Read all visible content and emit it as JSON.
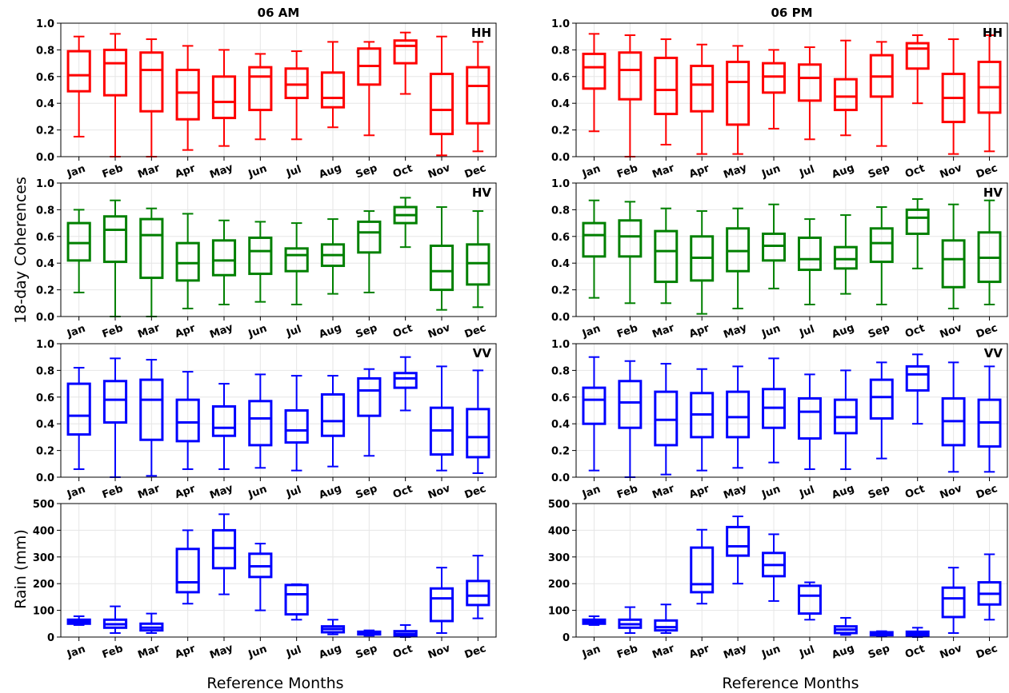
{
  "figure": {
    "ylabel_coherence": "18-day Coherences",
    "ylabel_rain": "Rain (mm)",
    "xlabel": "Reference Months"
  },
  "chart_data": [
    {
      "type": "box",
      "column": 0,
      "row": 0,
      "title": "06 AM",
      "label": "HH",
      "color": "#ff0000",
      "ylim": [
        0,
        1
      ],
      "yticks": [
        0.0,
        0.2,
        0.4,
        0.6,
        0.8,
        1.0
      ],
      "tick_decimals": 1,
      "categories": [
        "Jan",
        "Feb",
        "Mar",
        "Apr",
        "May",
        "Jun",
        "Jul",
        "Aug",
        "Sep",
        "Oct",
        "Nov",
        "Dec"
      ],
      "boxes": [
        {
          "min": 0.15,
          "q1": 0.49,
          "median": 0.61,
          "q3": 0.79,
          "max": 0.9
        },
        {
          "min": 0.0,
          "q1": 0.46,
          "median": 0.7,
          "q3": 0.8,
          "max": 0.92
        },
        {
          "min": 0.0,
          "q1": 0.34,
          "median": 0.65,
          "q3": 0.78,
          "max": 0.88
        },
        {
          "min": 0.05,
          "q1": 0.28,
          "median": 0.48,
          "q3": 0.65,
          "max": 0.83
        },
        {
          "min": 0.08,
          "q1": 0.29,
          "median": 0.41,
          "q3": 0.6,
          "max": 0.8
        },
        {
          "min": 0.13,
          "q1": 0.35,
          "median": 0.6,
          "q3": 0.67,
          "max": 0.77
        },
        {
          "min": 0.13,
          "q1": 0.44,
          "median": 0.54,
          "q3": 0.66,
          "max": 0.79
        },
        {
          "min": 0.22,
          "q1": 0.37,
          "median": 0.44,
          "q3": 0.63,
          "max": 0.86
        },
        {
          "min": 0.16,
          "q1": 0.54,
          "median": 0.68,
          "q3": 0.81,
          "max": 0.86
        },
        {
          "min": 0.47,
          "q1": 0.7,
          "median": 0.83,
          "q3": 0.87,
          "max": 0.93
        },
        {
          "min": 0.01,
          "q1": 0.17,
          "median": 0.35,
          "q3": 0.62,
          "max": 0.9
        },
        {
          "min": 0.04,
          "q1": 0.25,
          "median": 0.53,
          "q3": 0.67,
          "max": 0.86
        }
      ]
    },
    {
      "type": "box",
      "column": 1,
      "row": 0,
      "title": "06 PM",
      "label": "HH",
      "color": "#ff0000",
      "ylim": [
        0,
        1
      ],
      "yticks": [
        0.0,
        0.2,
        0.4,
        0.6,
        0.8,
        1.0
      ],
      "tick_decimals": 1,
      "categories": [
        "Jan",
        "Feb",
        "Mar",
        "Apr",
        "May",
        "Jun",
        "Jul",
        "Aug",
        "Sep",
        "Oct",
        "Nov",
        "Dec"
      ],
      "boxes": [
        {
          "min": 0.19,
          "q1": 0.51,
          "median": 0.67,
          "q3": 0.77,
          "max": 0.92
        },
        {
          "min": 0.0,
          "q1": 0.43,
          "median": 0.65,
          "q3": 0.78,
          "max": 0.91
        },
        {
          "min": 0.09,
          "q1": 0.32,
          "median": 0.5,
          "q3": 0.74,
          "max": 0.88
        },
        {
          "min": 0.02,
          "q1": 0.34,
          "median": 0.54,
          "q3": 0.68,
          "max": 0.84
        },
        {
          "min": 0.02,
          "q1": 0.24,
          "median": 0.56,
          "q3": 0.71,
          "max": 0.83
        },
        {
          "min": 0.21,
          "q1": 0.48,
          "median": 0.6,
          "q3": 0.7,
          "max": 0.8
        },
        {
          "min": 0.13,
          "q1": 0.42,
          "median": 0.59,
          "q3": 0.69,
          "max": 0.82
        },
        {
          "min": 0.16,
          "q1": 0.35,
          "median": 0.45,
          "q3": 0.58,
          "max": 0.87
        },
        {
          "min": 0.08,
          "q1": 0.45,
          "median": 0.6,
          "q3": 0.76,
          "max": 0.86
        },
        {
          "min": 0.4,
          "q1": 0.66,
          "median": 0.81,
          "q3": 0.85,
          "max": 0.91
        },
        {
          "min": 0.02,
          "q1": 0.26,
          "median": 0.44,
          "q3": 0.62,
          "max": 0.88
        },
        {
          "min": 0.04,
          "q1": 0.33,
          "median": 0.52,
          "q3": 0.71,
          "max": 0.91
        }
      ]
    },
    {
      "type": "box",
      "column": 0,
      "row": 1,
      "label": "HV",
      "color": "#008000",
      "ylim": [
        0,
        1
      ],
      "yticks": [
        0.0,
        0.2,
        0.4,
        0.6,
        0.8,
        1.0
      ],
      "tick_decimals": 1,
      "categories": [
        "Jan",
        "Feb",
        "Mar",
        "Apr",
        "May",
        "Jun",
        "Jul",
        "Aug",
        "Sep",
        "Oct",
        "Nov",
        "Dec"
      ],
      "boxes": [
        {
          "min": 0.18,
          "q1": 0.42,
          "median": 0.55,
          "q3": 0.7,
          "max": 0.8
        },
        {
          "min": 0.0,
          "q1": 0.41,
          "median": 0.65,
          "q3": 0.75,
          "max": 0.87
        },
        {
          "min": 0.0,
          "q1": 0.29,
          "median": 0.61,
          "q3": 0.73,
          "max": 0.81
        },
        {
          "min": 0.06,
          "q1": 0.27,
          "median": 0.4,
          "q3": 0.55,
          "max": 0.77
        },
        {
          "min": 0.09,
          "q1": 0.31,
          "median": 0.42,
          "q3": 0.57,
          "max": 0.72
        },
        {
          "min": 0.11,
          "q1": 0.32,
          "median": 0.49,
          "q3": 0.59,
          "max": 0.71
        },
        {
          "min": 0.09,
          "q1": 0.34,
          "median": 0.46,
          "q3": 0.51,
          "max": 0.7
        },
        {
          "min": 0.17,
          "q1": 0.38,
          "median": 0.46,
          "q3": 0.54,
          "max": 0.73
        },
        {
          "min": 0.18,
          "q1": 0.48,
          "median": 0.63,
          "q3": 0.71,
          "max": 0.79
        },
        {
          "min": 0.52,
          "q1": 0.7,
          "median": 0.76,
          "q3": 0.82,
          "max": 0.89
        },
        {
          "min": 0.05,
          "q1": 0.2,
          "median": 0.34,
          "q3": 0.53,
          "max": 0.82
        },
        {
          "min": 0.07,
          "q1": 0.24,
          "median": 0.4,
          "q3": 0.54,
          "max": 0.79
        }
      ]
    },
    {
      "type": "box",
      "column": 1,
      "row": 1,
      "label": "HV",
      "color": "#008000",
      "ylim": [
        0,
        1
      ],
      "yticks": [
        0.0,
        0.2,
        0.4,
        0.6,
        0.8,
        1.0
      ],
      "tick_decimals": 1,
      "categories": [
        "Jan",
        "Feb",
        "Mar",
        "Apr",
        "May",
        "Jun",
        "Jul",
        "Aug",
        "Sep",
        "Oct",
        "Nov",
        "Dec"
      ],
      "boxes": [
        {
          "min": 0.14,
          "q1": 0.45,
          "median": 0.61,
          "q3": 0.7,
          "max": 0.87
        },
        {
          "min": 0.1,
          "q1": 0.45,
          "median": 0.6,
          "q3": 0.72,
          "max": 0.86
        },
        {
          "min": 0.1,
          "q1": 0.26,
          "median": 0.49,
          "q3": 0.64,
          "max": 0.81
        },
        {
          "min": 0.02,
          "q1": 0.27,
          "median": 0.44,
          "q3": 0.6,
          "max": 0.79
        },
        {
          "min": 0.06,
          "q1": 0.34,
          "median": 0.49,
          "q3": 0.66,
          "max": 0.81
        },
        {
          "min": 0.21,
          "q1": 0.42,
          "median": 0.53,
          "q3": 0.62,
          "max": 0.84
        },
        {
          "min": 0.09,
          "q1": 0.35,
          "median": 0.43,
          "q3": 0.59,
          "max": 0.73
        },
        {
          "min": 0.17,
          "q1": 0.36,
          "median": 0.43,
          "q3": 0.52,
          "max": 0.76
        },
        {
          "min": 0.09,
          "q1": 0.41,
          "median": 0.55,
          "q3": 0.66,
          "max": 0.82
        },
        {
          "min": 0.36,
          "q1": 0.62,
          "median": 0.74,
          "q3": 0.8,
          "max": 0.88
        },
        {
          "min": 0.06,
          "q1": 0.22,
          "median": 0.43,
          "q3": 0.57,
          "max": 0.84
        },
        {
          "min": 0.09,
          "q1": 0.26,
          "median": 0.44,
          "q3": 0.63,
          "max": 0.87
        }
      ]
    },
    {
      "type": "box",
      "column": 0,
      "row": 2,
      "label": "VV",
      "color": "#0000ff",
      "ylim": [
        0,
        1
      ],
      "yticks": [
        0.0,
        0.2,
        0.4,
        0.6,
        0.8,
        1.0
      ],
      "tick_decimals": 1,
      "categories": [
        "Jan",
        "Feb",
        "Mar",
        "Apr",
        "May",
        "Jun",
        "Jul",
        "Aug",
        "Sep",
        "Oct",
        "Nov",
        "Dec"
      ],
      "boxes": [
        {
          "min": 0.06,
          "q1": 0.32,
          "median": 0.46,
          "q3": 0.7,
          "max": 0.82
        },
        {
          "min": 0.0,
          "q1": 0.41,
          "median": 0.58,
          "q3": 0.72,
          "max": 0.89
        },
        {
          "min": 0.01,
          "q1": 0.28,
          "median": 0.58,
          "q3": 0.73,
          "max": 0.88
        },
        {
          "min": 0.06,
          "q1": 0.27,
          "median": 0.41,
          "q3": 0.58,
          "max": 0.79
        },
        {
          "min": 0.06,
          "q1": 0.31,
          "median": 0.37,
          "q3": 0.53,
          "max": 0.7
        },
        {
          "min": 0.07,
          "q1": 0.24,
          "median": 0.44,
          "q3": 0.57,
          "max": 0.77
        },
        {
          "min": 0.05,
          "q1": 0.26,
          "median": 0.35,
          "q3": 0.5,
          "max": 0.76
        },
        {
          "min": 0.08,
          "q1": 0.31,
          "median": 0.42,
          "q3": 0.62,
          "max": 0.76
        },
        {
          "min": 0.16,
          "q1": 0.46,
          "median": 0.65,
          "q3": 0.74,
          "max": 0.81
        },
        {
          "min": 0.5,
          "q1": 0.67,
          "median": 0.74,
          "q3": 0.78,
          "max": 0.9
        },
        {
          "min": 0.05,
          "q1": 0.17,
          "median": 0.35,
          "q3": 0.52,
          "max": 0.83
        },
        {
          "min": 0.03,
          "q1": 0.15,
          "median": 0.3,
          "q3": 0.51,
          "max": 0.8
        }
      ]
    },
    {
      "type": "box",
      "column": 1,
      "row": 2,
      "label": "VV",
      "color": "#0000ff",
      "ylim": [
        0,
        1
      ],
      "yticks": [
        0.0,
        0.2,
        0.4,
        0.6,
        0.8,
        1.0
      ],
      "tick_decimals": 1,
      "categories": [
        "Jan",
        "Feb",
        "Mar",
        "Apr",
        "May",
        "Jun",
        "Jul",
        "Aug",
        "Sep",
        "Oct",
        "Nov",
        "Dec"
      ],
      "boxes": [
        {
          "min": 0.05,
          "q1": 0.4,
          "median": 0.58,
          "q3": 0.67,
          "max": 0.9
        },
        {
          "min": 0.0,
          "q1": 0.37,
          "median": 0.56,
          "q3": 0.72,
          "max": 0.87
        },
        {
          "min": 0.02,
          "q1": 0.24,
          "median": 0.43,
          "q3": 0.64,
          "max": 0.85
        },
        {
          "min": 0.05,
          "q1": 0.3,
          "median": 0.47,
          "q3": 0.63,
          "max": 0.81
        },
        {
          "min": 0.07,
          "q1": 0.3,
          "median": 0.45,
          "q3": 0.64,
          "max": 0.83
        },
        {
          "min": 0.11,
          "q1": 0.37,
          "median": 0.52,
          "q3": 0.66,
          "max": 0.89
        },
        {
          "min": 0.06,
          "q1": 0.29,
          "median": 0.49,
          "q3": 0.59,
          "max": 0.77
        },
        {
          "min": 0.06,
          "q1": 0.33,
          "median": 0.45,
          "q3": 0.58,
          "max": 0.8
        },
        {
          "min": 0.14,
          "q1": 0.44,
          "median": 0.6,
          "q3": 0.73,
          "max": 0.86
        },
        {
          "min": 0.4,
          "q1": 0.65,
          "median": 0.77,
          "q3": 0.83,
          "max": 0.92
        },
        {
          "min": 0.04,
          "q1": 0.24,
          "median": 0.42,
          "q3": 0.59,
          "max": 0.86
        },
        {
          "min": 0.04,
          "q1": 0.23,
          "median": 0.41,
          "q3": 0.58,
          "max": 0.83
        }
      ]
    },
    {
      "type": "box",
      "column": 0,
      "row": 3,
      "color": "#0000ff",
      "ylim": [
        0,
        500
      ],
      "yticks": [
        0,
        100,
        200,
        300,
        400,
        500
      ],
      "tick_decimals": 0,
      "categories": [
        "Jan",
        "Feb",
        "Mar",
        "Apr",
        "May",
        "Jun",
        "Jul",
        "Aug",
        "Sep",
        "Oct",
        "Nov",
        "Dec"
      ],
      "boxes": [
        {
          "min": 45,
          "q1": 50,
          "median": 58,
          "q3": 65,
          "max": 78
        },
        {
          "min": 15,
          "q1": 35,
          "median": 48,
          "q3": 65,
          "max": 115
        },
        {
          "min": 15,
          "q1": 25,
          "median": 35,
          "q3": 50,
          "max": 88
        },
        {
          "min": 125,
          "q1": 168,
          "median": 205,
          "q3": 330,
          "max": 400
        },
        {
          "min": 160,
          "q1": 258,
          "median": 333,
          "q3": 400,
          "max": 460
        },
        {
          "min": 100,
          "q1": 225,
          "median": 265,
          "q3": 312,
          "max": 350
        },
        {
          "min": 65,
          "q1": 85,
          "median": 160,
          "q3": 195,
          "max": 198
        },
        {
          "min": 10,
          "q1": 18,
          "median": 30,
          "q3": 40,
          "max": 65
        },
        {
          "min": 5,
          "q1": 10,
          "median": 15,
          "q3": 20,
          "max": 25
        },
        {
          "min": 0,
          "q1": 5,
          "median": 12,
          "q3": 22,
          "max": 45
        },
        {
          "min": 15,
          "q1": 60,
          "median": 145,
          "q3": 182,
          "max": 260
        },
        {
          "min": 70,
          "q1": 120,
          "median": 155,
          "q3": 210,
          "max": 305
        }
      ]
    },
    {
      "type": "box",
      "column": 1,
      "row": 3,
      "color": "#0000ff",
      "ylim": [
        0,
        500
      ],
      "yticks": [
        0,
        100,
        200,
        300,
        400,
        500
      ],
      "tick_decimals": 0,
      "categories": [
        "Jan",
        "Feb",
        "Mar",
        "Apr",
        "May",
        "Jun",
        "Jul",
        "Aug",
        "Sep",
        "Oct",
        "Nov",
        "Dec"
      ],
      "boxes": [
        {
          "min": 45,
          "q1": 50,
          "median": 58,
          "q3": 65,
          "max": 78
        },
        {
          "min": 15,
          "q1": 35,
          "median": 48,
          "q3": 65,
          "max": 112
        },
        {
          "min": 15,
          "q1": 25,
          "median": 37,
          "q3": 62,
          "max": 122
        },
        {
          "min": 125,
          "q1": 168,
          "median": 198,
          "q3": 335,
          "max": 402
        },
        {
          "min": 200,
          "q1": 305,
          "median": 340,
          "q3": 412,
          "max": 452
        },
        {
          "min": 135,
          "q1": 228,
          "median": 270,
          "q3": 315,
          "max": 385
        },
        {
          "min": 65,
          "q1": 88,
          "median": 155,
          "q3": 192,
          "max": 205
        },
        {
          "min": 8,
          "q1": 15,
          "median": 28,
          "q3": 40,
          "max": 72
        },
        {
          "min": 3,
          "q1": 7,
          "median": 12,
          "q3": 18,
          "max": 22
        },
        {
          "min": 0,
          "q1": 5,
          "median": 12,
          "q3": 20,
          "max": 35
        },
        {
          "min": 15,
          "q1": 75,
          "median": 145,
          "q3": 185,
          "max": 260
        },
        {
          "min": 65,
          "q1": 122,
          "median": 162,
          "q3": 205,
          "max": 310
        }
      ]
    }
  ]
}
